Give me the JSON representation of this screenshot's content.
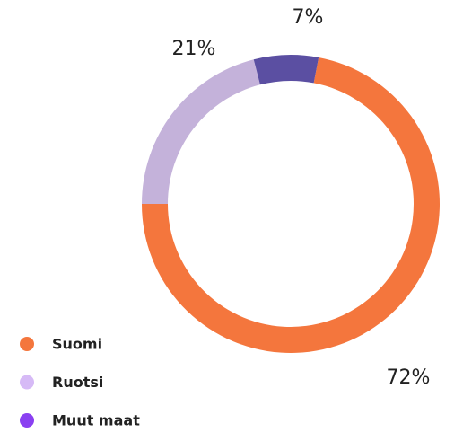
{
  "chart_data": {
    "type": "donut",
    "categories": [
      "Suomi",
      "Ruotsi",
      "Muut maat"
    ],
    "values": [
      72,
      21,
      7
    ],
    "value_labels": [
      "72%",
      "21%",
      "7%"
    ],
    "colors": [
      "#f4763d",
      "#c4b2da",
      "#5b4fa2"
    ],
    "legend_colors": [
      "#f4763d",
      "#d6baf6",
      "#8a40f1"
    ]
  }
}
